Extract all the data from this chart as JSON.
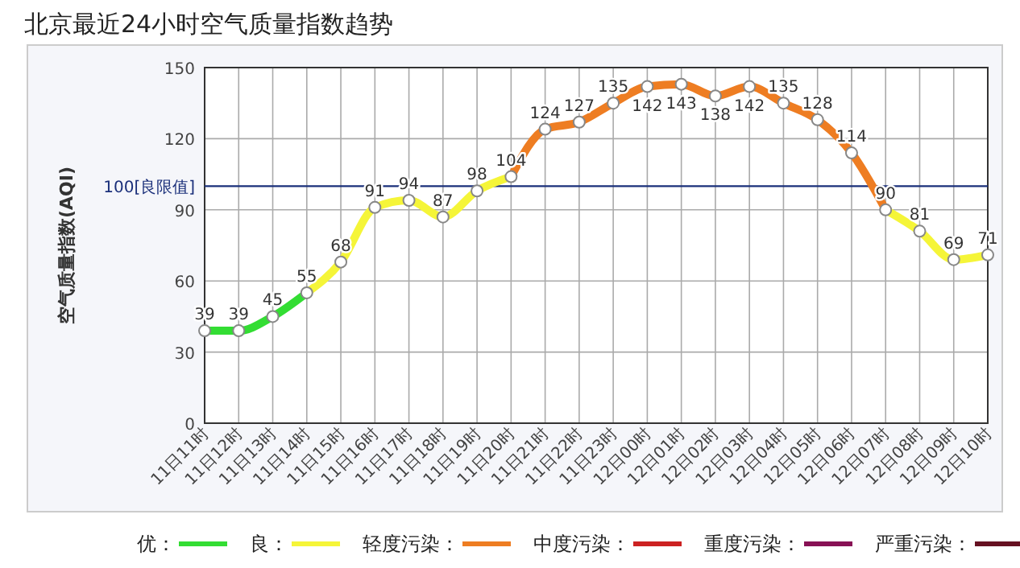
{
  "chart_data": {
    "type": "line",
    "title": "北京最近24小时空气质量指数趋势",
    "ylabel": "空气质量指数(AQI)",
    "categories": [
      "11日11时",
      "11日12时",
      "11日13时",
      "11日14时",
      "11日15时",
      "11日16时",
      "11日17时",
      "11日18时",
      "11日19时",
      "11日20时",
      "11日21时",
      "11日22时",
      "11日23时",
      "12日00时",
      "12日01时",
      "12日02时",
      "12日03时",
      "12日04时",
      "12日05时",
      "12日06时",
      "12日07时",
      "12日08时",
      "12日09时",
      "12日10时"
    ],
    "series": [
      {
        "name": "优：",
        "color": "#33dd33",
        "values": [
          39,
          39,
          45,
          55,
          null,
          null,
          null,
          null,
          null,
          null,
          null,
          null,
          null,
          null,
          null,
          null,
          null,
          null,
          null,
          null,
          null,
          null,
          null,
          null
        ]
      },
      {
        "name": "良：",
        "color": "#f5f538",
        "values": [
          null,
          null,
          null,
          55,
          68,
          91,
          94,
          87,
          98,
          104,
          null,
          null,
          null,
          null,
          null,
          null,
          null,
          null,
          null,
          null,
          90,
          81,
          69,
          71
        ],
        "value_labels": [
          null,
          null,
          null,
          null,
          "68",
          "91",
          "94",
          "87",
          "98",
          null,
          null,
          null,
          null,
          null,
          null,
          null,
          null,
          null,
          null,
          null,
          null,
          "81",
          "69",
          "71"
        ]
      },
      {
        "name": "轻度污染：",
        "color": "#ee7d22",
        "values": [
          null,
          null,
          null,
          null,
          null,
          null,
          null,
          null,
          null,
          104,
          124,
          127,
          135,
          142,
          143,
          138,
          142,
          135,
          128,
          114,
          90,
          null,
          null,
          null
        ]
      },
      {
        "name": "中度污染：",
        "color": "#cc2222",
        "values": [
          null,
          null,
          null,
          null,
          null,
          null,
          null,
          null,
          null,
          null,
          null,
          null,
          null,
          null,
          null,
          null,
          null,
          null,
          null,
          null,
          null,
          null,
          null,
          null
        ]
      },
      {
        "name": "重度污染：",
        "color": "#881155",
        "values": [
          null,
          null,
          null,
          null,
          null,
          null,
          null,
          null,
          null,
          null,
          null,
          null,
          null,
          null,
          null,
          null,
          null,
          null,
          null,
          null,
          null,
          null,
          null,
          null
        ]
      },
      {
        "name": "严重污染：",
        "color": "#661122",
        "values": [
          null,
          null,
          null,
          null,
          null,
          null,
          null,
          null,
          null,
          null,
          null,
          null,
          null,
          null,
          null,
          null,
          null,
          null,
          null,
          null,
          null,
          null,
          null,
          null
        ]
      }
    ],
    "ylim": [
      0,
      150
    ],
    "yticks": [
      0,
      30,
      60,
      90,
      120,
      150
    ],
    "grid": true,
    "marker": "circle",
    "data_labels": true,
    "legend": "bottom",
    "ref_lines": [
      {
        "axis": "y",
        "value": 100,
        "label": "100[良限值]",
        "color": "#1a2f7a"
      }
    ]
  }
}
